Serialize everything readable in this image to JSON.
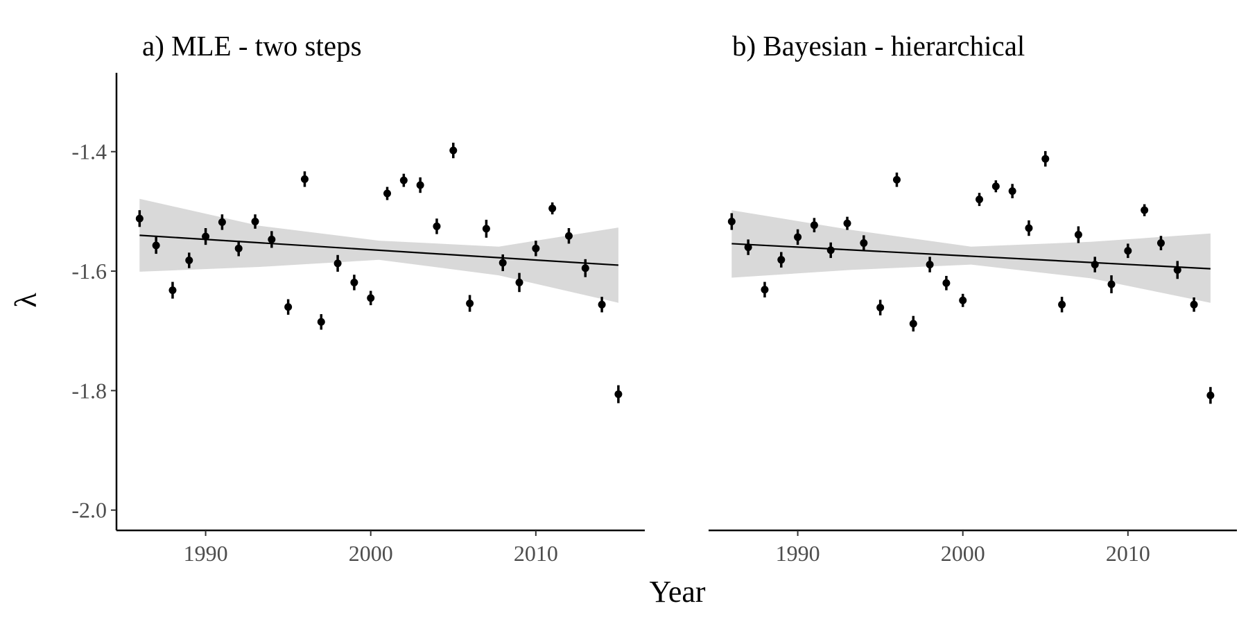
{
  "chart_data": [
    {
      "type": "scatter",
      "title": "a) MLE - two steps",
      "xlabel": "Year",
      "ylabel": "λ",
      "xlim": [
        1984.6,
        2016.6
      ],
      "ylim": [
        -2.034,
        -1.268
      ],
      "x_ticks": [
        1990,
        2000,
        2010
      ],
      "x_tick_labels": [
        "1990",
        "2000",
        "2010"
      ],
      "y_ticks": [
        -2.0,
        -1.8,
        -1.6,
        -1.4
      ],
      "y_tick_labels": [
        "-2.0",
        "-1.8",
        "-1.6",
        "-1.4"
      ],
      "grid": false,
      "series": [
        {
          "x": [
            1986,
            1987,
            1988,
            1989,
            1990,
            1991,
            1992,
            1993,
            1994,
            1995,
            1996,
            1997,
            1998,
            1999,
            2000,
            2001,
            2002,
            2003,
            2004,
            2005,
            2006,
            2007,
            2008,
            2009,
            2010,
            2011,
            2012,
            2013,
            2014,
            2015
          ],
          "y": [
            -1.512,
            -1.557,
            -1.632,
            -1.582,
            -1.542,
            -1.518,
            -1.562,
            -1.517,
            -1.547,
            -1.66,
            -1.446,
            -1.685,
            -1.587,
            -1.619,
            -1.645,
            -1.47,
            -1.448,
            -1.456,
            -1.525,
            -1.398,
            -1.654,
            -1.529,
            -1.586,
            -1.619,
            -1.562,
            -1.495,
            -1.541,
            -1.595,
            -1.656,
            -1.806
          ],
          "error": [
            0.014,
            0.014,
            0.014,
            0.013,
            0.014,
            0.013,
            0.013,
            0.012,
            0.014,
            0.013,
            0.013,
            0.013,
            0.014,
            0.013,
            0.012,
            0.011,
            0.011,
            0.013,
            0.013,
            0.013,
            0.014,
            0.015,
            0.014,
            0.016,
            0.013,
            0.01,
            0.013,
            0.015,
            0.013,
            0.015
          ]
        }
      ],
      "trend": {
        "x": [
          1986,
          2015
        ],
        "y": [
          -1.54,
          -1.59
        ]
      },
      "band": {
        "x": [
          1986,
          1993.25,
          2000.5,
          2007.75,
          2015
        ],
        "lower": [
          -1.601,
          -1.593,
          -1.581,
          -1.607,
          -1.653
        ],
        "upper": [
          -1.479,
          -1.524,
          -1.549,
          -1.559,
          -1.527
        ]
      }
    },
    {
      "type": "scatter",
      "title": "b) Bayesian - hierarchical",
      "xlabel": "Year",
      "ylabel": "λ",
      "xlim": [
        1984.6,
        2016.6
      ],
      "ylim": [
        -2.034,
        -1.268
      ],
      "x_ticks": [
        1990,
        2000,
        2010
      ],
      "x_tick_labels": [
        "1990",
        "2000",
        "2010"
      ],
      "grid": false,
      "series": [
        {
          "x": [
            1986,
            1987,
            1988,
            1989,
            1990,
            1991,
            1992,
            1993,
            1994,
            1995,
            1996,
            1997,
            1998,
            1999,
            2000,
            2001,
            2002,
            2003,
            2004,
            2005,
            2006,
            2007,
            2008,
            2009,
            2010,
            2011,
            2012,
            2013,
            2014,
            2015
          ],
          "y": [
            -1.517,
            -1.56,
            -1.631,
            -1.581,
            -1.543,
            -1.523,
            -1.565,
            -1.52,
            -1.553,
            -1.661,
            -1.447,
            -1.688,
            -1.589,
            -1.62,
            -1.649,
            -1.48,
            -1.458,
            -1.466,
            -1.528,
            -1.412,
            -1.656,
            -1.539,
            -1.589,
            -1.622,
            -1.566,
            -1.498,
            -1.553,
            -1.598,
            -1.656,
            -1.808
          ],
          "error": [
            0.014,
            0.013,
            0.013,
            0.013,
            0.013,
            0.012,
            0.013,
            0.011,
            0.013,
            0.013,
            0.012,
            0.013,
            0.013,
            0.012,
            0.011,
            0.011,
            0.01,
            0.012,
            0.013,
            0.013,
            0.013,
            0.014,
            0.013,
            0.015,
            0.012,
            0.01,
            0.012,
            0.015,
            0.012,
            0.014
          ]
        }
      ],
      "trend": {
        "x": [
          1986,
          2015
        ],
        "y": [
          -1.554,
          -1.596
        ]
      },
      "band": {
        "x": [
          1986,
          1993.25,
          2000.5,
          2007.75,
          2015
        ],
        "lower": [
          -1.611,
          -1.598,
          -1.589,
          -1.612,
          -1.653
        ],
        "upper": [
          -1.498,
          -1.531,
          -1.559,
          -1.551,
          -1.537
        ]
      }
    }
  ],
  "shared_xlabel": "Year",
  "colors": {
    "points": "#000000",
    "band": "#d9d9d9",
    "trend": "#000000",
    "tick_text": "#4d4d4d"
  }
}
